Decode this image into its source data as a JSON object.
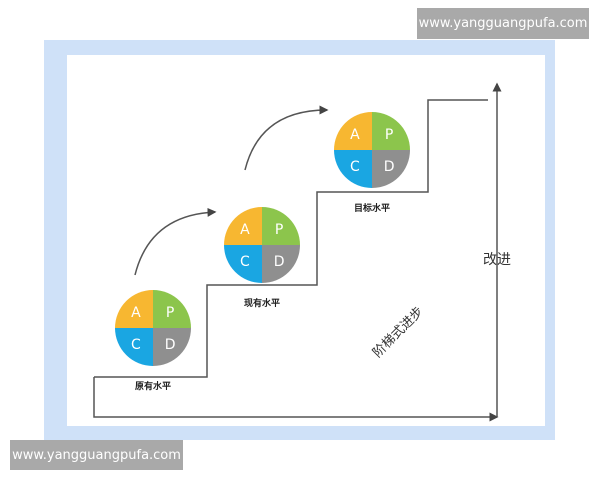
{
  "watermarks": {
    "top": "www.yangguangpufa.com",
    "bottom": "www.yangguangpufa.com"
  },
  "cycles": [
    {
      "label": "原有水平",
      "quadrants": {
        "A": "A",
        "P": "P",
        "C": "C",
        "D": "D"
      }
    },
    {
      "label": "现有水平",
      "quadrants": {
        "A": "A",
        "P": "P",
        "C": "C",
        "D": "D"
      }
    },
    {
      "label": "目标水平",
      "quadrants": {
        "A": "A",
        "P": "P",
        "C": "C",
        "D": "D"
      }
    }
  ],
  "axis_label": "改进",
  "diagonal_label": "阶梯式进步",
  "colors": {
    "A": "#f7b731",
    "P": "#8cc54c",
    "C": "#1aa6e2",
    "D": "#8f8f8f",
    "frame": "#cfe1f8",
    "line": "#555555"
  }
}
